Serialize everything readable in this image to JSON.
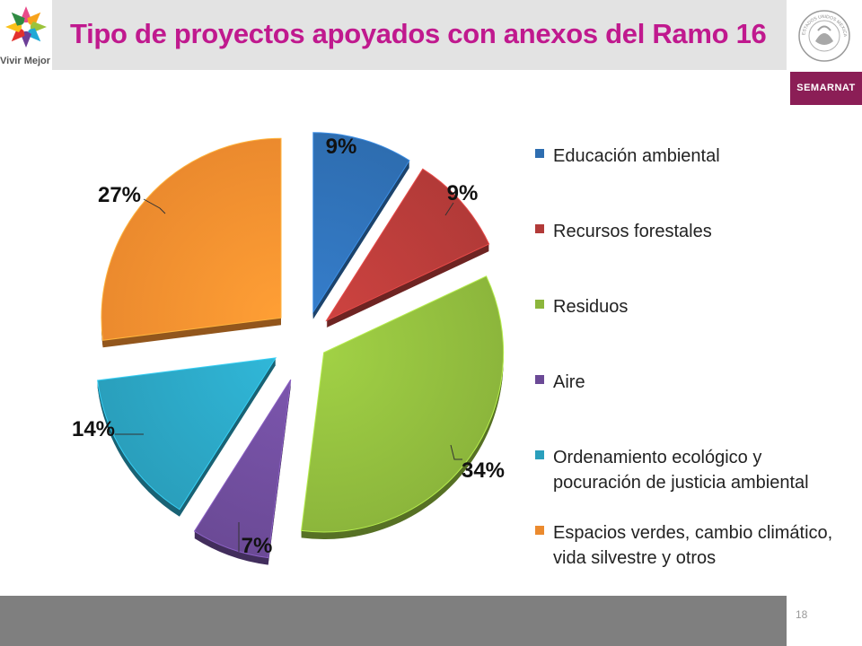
{
  "header": {
    "title": "Tipo de proyectos apoyados con anexos del Ramo 16",
    "logo_caption": "Vivir Mejor",
    "seal_text": "ESTADOS UNIDOS MEXICANOS",
    "agency_label": "SEMARNAT"
  },
  "footer": {
    "page_number": "18"
  },
  "colors": {
    "title": "#c0198e",
    "header_band": "#e3e3e3",
    "footer_bar": "#7f7f7f",
    "agency": "#8b1e56"
  },
  "chart_data": {
    "type": "pie",
    "title": "",
    "exploded": true,
    "style": "3d",
    "legend_position": "right",
    "series": [
      {
        "name": "",
        "values": [
          9,
          9,
          34,
          7,
          14,
          27
        ]
      }
    ],
    "categories": [
      "Educación ambiental",
      "Recursos forestales",
      "Residuos",
      "Aire",
      "Ordenamiento ecológico y pocuración de justicia ambiental",
      "Espacios verdes, cambio climático, vida silvestre y otros"
    ],
    "labels": [
      "9%",
      "9%",
      "34%",
      "7%",
      "14%",
      "27%"
    ],
    "colors": [
      "#2e6db0",
      "#b23a38",
      "#8cb63c",
      "#6b4a96",
      "#2a9fbc",
      "#eb8a2e"
    ]
  }
}
